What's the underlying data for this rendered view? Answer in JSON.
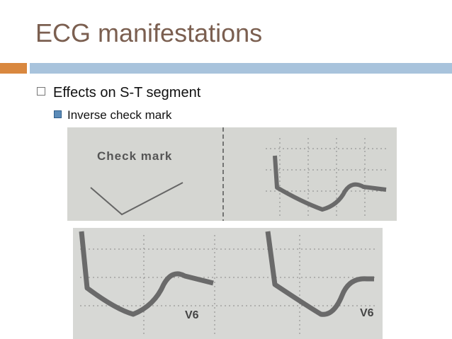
{
  "header": {
    "title": "ECG manifestations"
  },
  "bullets": [
    {
      "text": "Effects on S-T segment",
      "children": [
        {
          "text": "Inverse check mark"
        }
      ]
    }
  ],
  "figures": [
    {
      "label": "Check mark"
    },
    {
      "labels": [
        "V6",
        "V6"
      ]
    }
  ]
}
